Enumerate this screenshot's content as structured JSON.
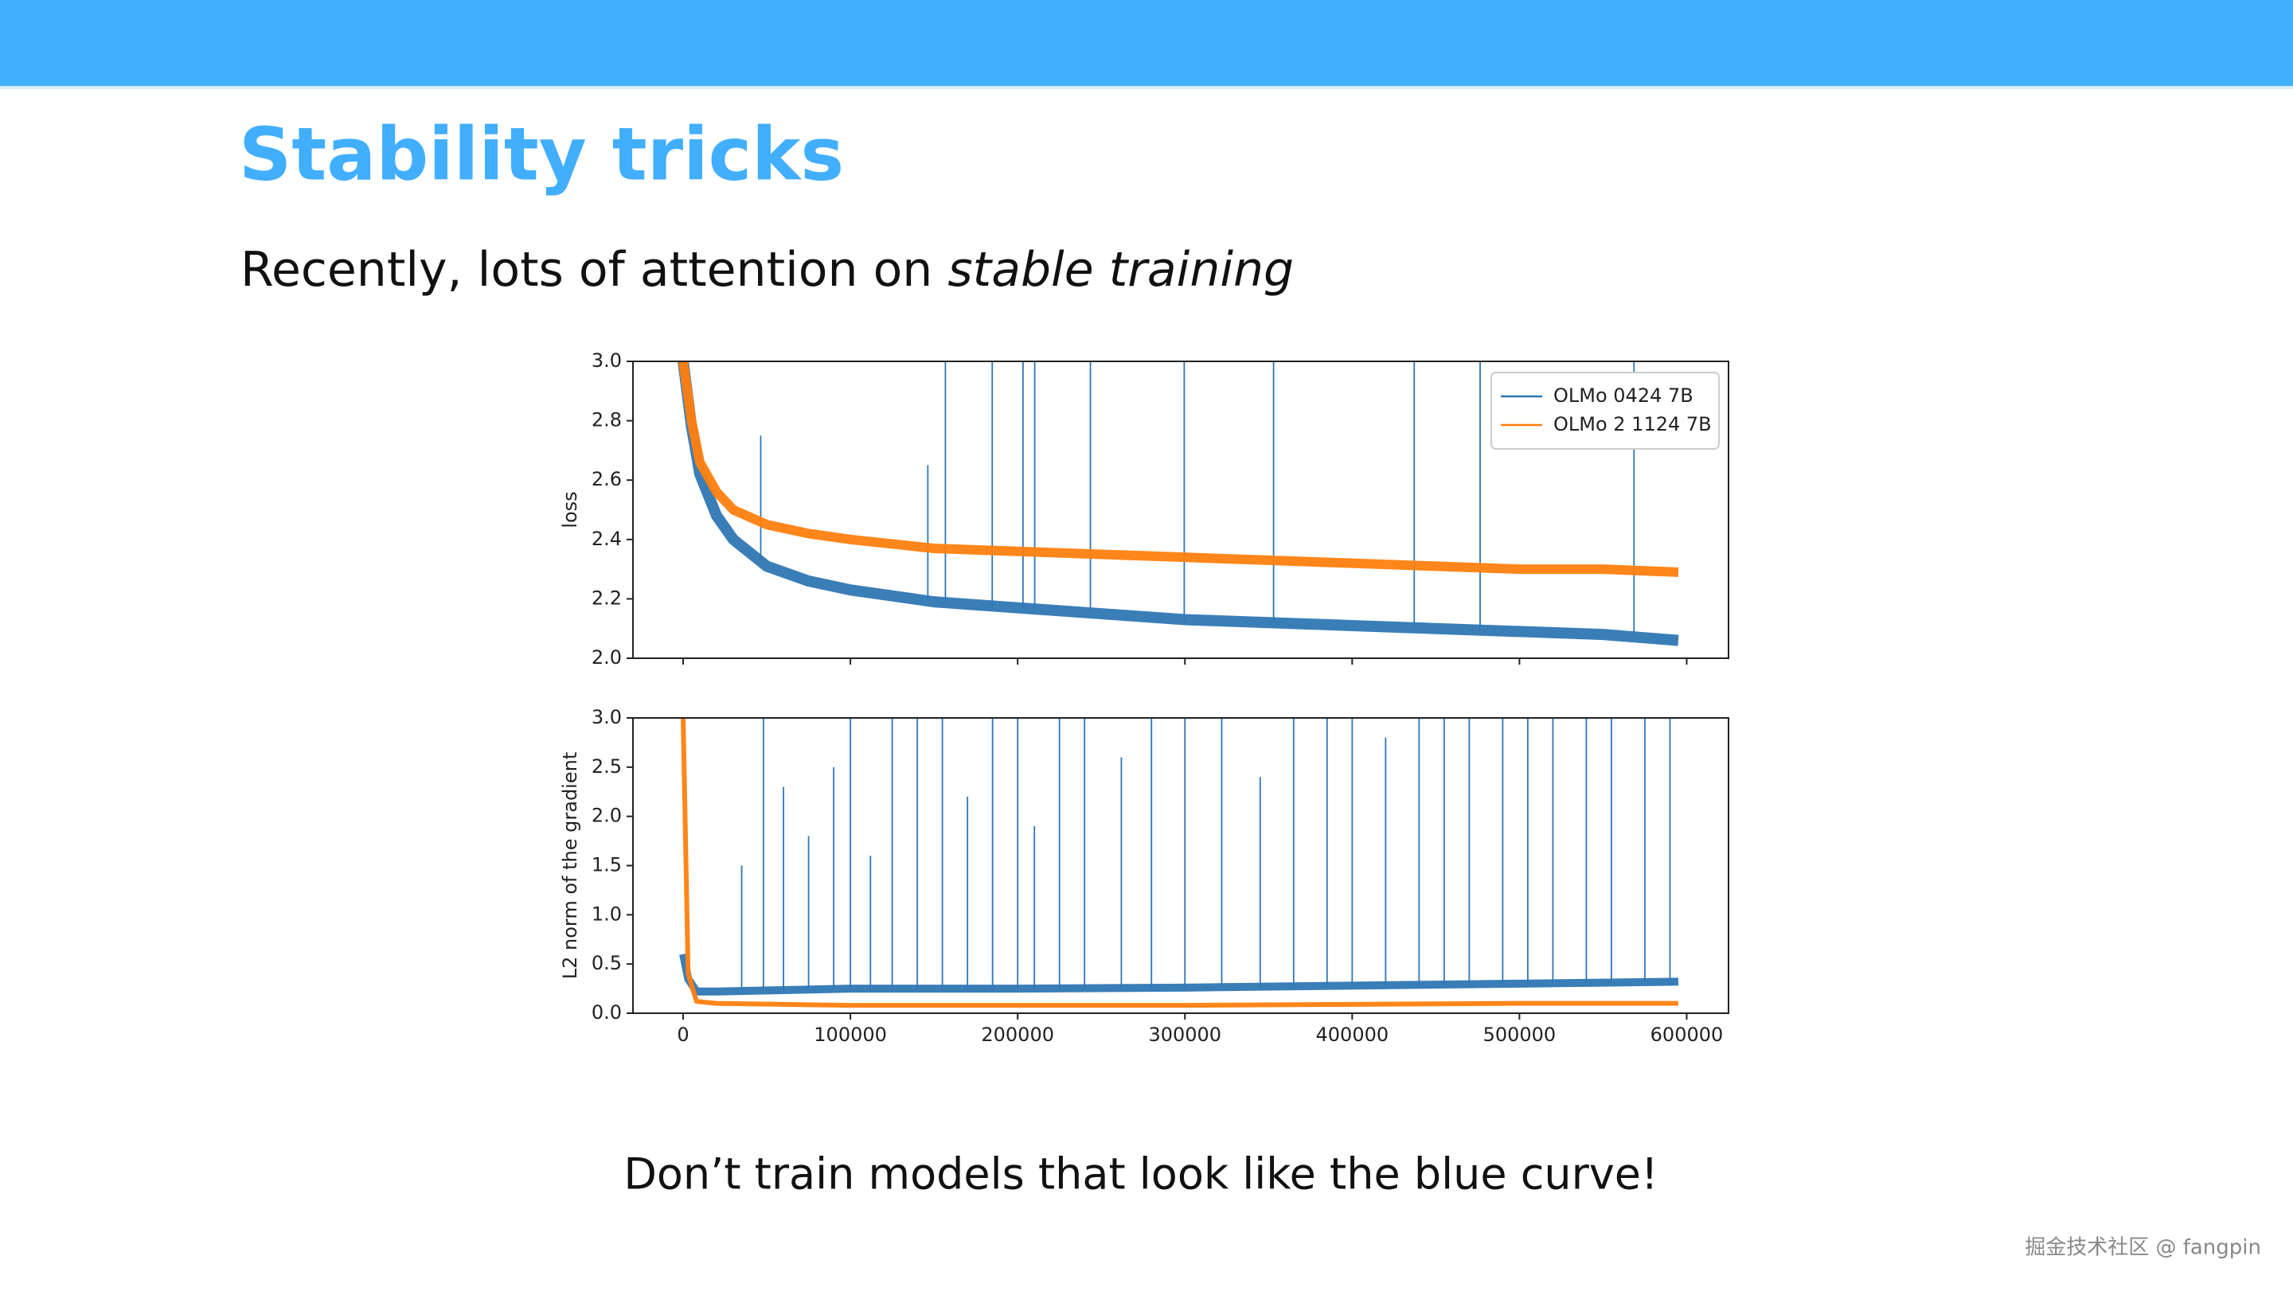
{
  "slide": {
    "title": "Stability tricks",
    "subtitle": [
      "Recently, lots of attention on ",
      "stable training"
    ],
    "caption": "Don’t train models that look like the blue curve!",
    "watermark": "掘金技术社区 @ fangpin"
  },
  "chart_data": [
    {
      "type": "line",
      "ylabel": "loss",
      "legend": "upper right",
      "x": [
        0,
        5000,
        10000,
        20000,
        30000,
        50000,
        75000,
        100000,
        150000,
        200000,
        250000,
        300000,
        350000,
        400000,
        450000,
        500000,
        550000,
        595000
      ],
      "xlim": [
        -30000,
        625000
      ],
      "ylim": [
        2.0,
        3.0
      ],
      "yticks": [
        {
          "value": 2.0,
          "label": "2.0"
        },
        2.2,
        2.4,
        2.6,
        2.8,
        {
          "value": 3.0,
          "label": "3.0"
        }
      ],
      "series": [
        {
          "name": "OLMo 0424 7B",
          "color": "#2f77b4",
          "values": [
            3.0,
            2.78,
            2.62,
            2.48,
            2.4,
            2.31,
            2.26,
            2.23,
            2.19,
            2.17,
            2.15,
            2.13,
            2.12,
            2.11,
            2.1,
            2.09,
            2.08,
            2.06
          ],
          "spikes": {
            "x": [
              46400,
              146300,
              156800,
              184800,
              203200,
              210200,
              243500,
              299600,
              353000,
              437100,
              476500,
              568500
            ],
            "values": [
              2.75,
              2.65,
              3.0,
              3.0,
              3.0,
              3.0,
              3.0,
              3.0,
              3.0,
              3.0,
              3.0,
              3.0
            ]
          }
        },
        {
          "name": "OLMo 2 1124 7B",
          "color": "#ff7f0e",
          "values": [
            3.0,
            2.8,
            2.66,
            2.56,
            2.5,
            2.45,
            2.42,
            2.4,
            2.37,
            2.36,
            2.35,
            2.34,
            2.33,
            2.32,
            2.31,
            2.3,
            2.3,
            2.29
          ]
        }
      ]
    },
    {
      "type": "line",
      "ylabel": "L2 norm of the gradient",
      "x": [
        0,
        3000,
        8000,
        20000,
        100000,
        200000,
        300000,
        400000,
        500000,
        595000
      ],
      "xlim": [
        -30000,
        625000
      ],
      "ylim": [
        0,
        3.0
      ],
      "xticks": [
        0,
        100000,
        200000,
        300000,
        400000,
        500000,
        600000
      ],
      "yticks": [
        {
          "value": 0,
          "label": "0.0"
        },
        0.5,
        {
          "value": 1.0,
          "label": "1.0"
        },
        1.5,
        {
          "value": 2.0,
          "label": "2.0"
        },
        2.5,
        {
          "value": 3.0,
          "label": "3.0"
        }
      ],
      "series": [
        {
          "color": "#2f77b4",
          "values": [
            0.6,
            0.35,
            0.22,
            0.22,
            0.25,
            0.25,
            0.26,
            0.28,
            0.3,
            0.32
          ],
          "spikes": {
            "x": [
              35000,
              48000,
              60000,
              75000,
              90000,
              100000,
              112000,
              125000,
              140000,
              155000,
              170000,
              185000,
              200000,
              210000,
              225000,
              240000,
              262000,
              280000,
              300000,
              322000,
              345000,
              365000,
              385000,
              400000,
              420000,
              440000,
              455000,
              470000,
              490000,
              505000,
              520000,
              540000,
              555000,
              575000,
              590000
            ],
            "values": [
              1.5,
              3.0,
              2.3,
              1.8,
              2.5,
              3.0,
              1.6,
              3.0,
              3.0,
              3.0,
              2.2,
              3.0,
              3.0,
              1.9,
              3.0,
              3.0,
              2.6,
              3.0,
              3.0,
              3.0,
              2.4,
              3.0,
              3.0,
              3.0,
              2.8,
              3.0,
              3.0,
              3.0,
              3.0,
              3.0,
              3.0,
              3.0,
              3.0,
              3.0,
              3.0
            ]
          }
        },
        {
          "color": "#ff7f0e",
          "values": [
            3.0,
            0.4,
            0.12,
            0.1,
            0.08,
            0.08,
            0.08,
            0.09,
            0.1,
            0.1
          ]
        }
      ]
    }
  ]
}
